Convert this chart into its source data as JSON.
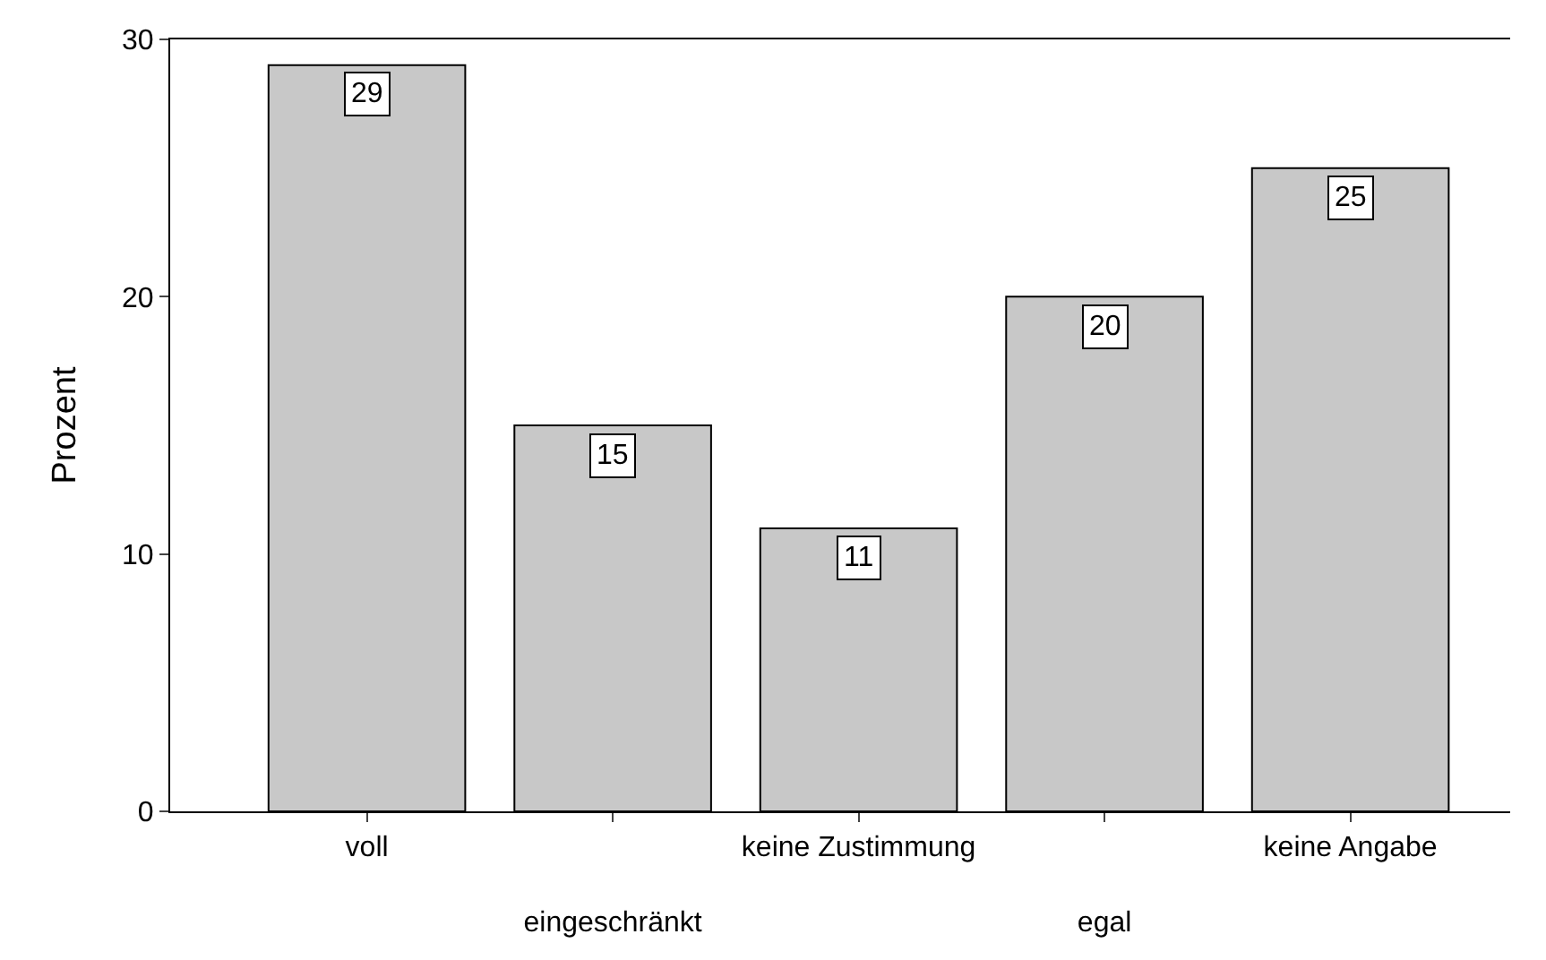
{
  "chart_data": {
    "type": "bar",
    "ylabel": "Prozent",
    "categories": [
      "voll",
      "eingeschränkt",
      "keine Zustimmung",
      "egal",
      "keine Angabe"
    ],
    "values": [
      29,
      15,
      11,
      20,
      25
    ],
    "color": "#c8c8c8",
    "ylim": [
      0,
      30
    ],
    "yticks": [
      0,
      10,
      20,
      30
    ],
    "data_labels": true
  }
}
